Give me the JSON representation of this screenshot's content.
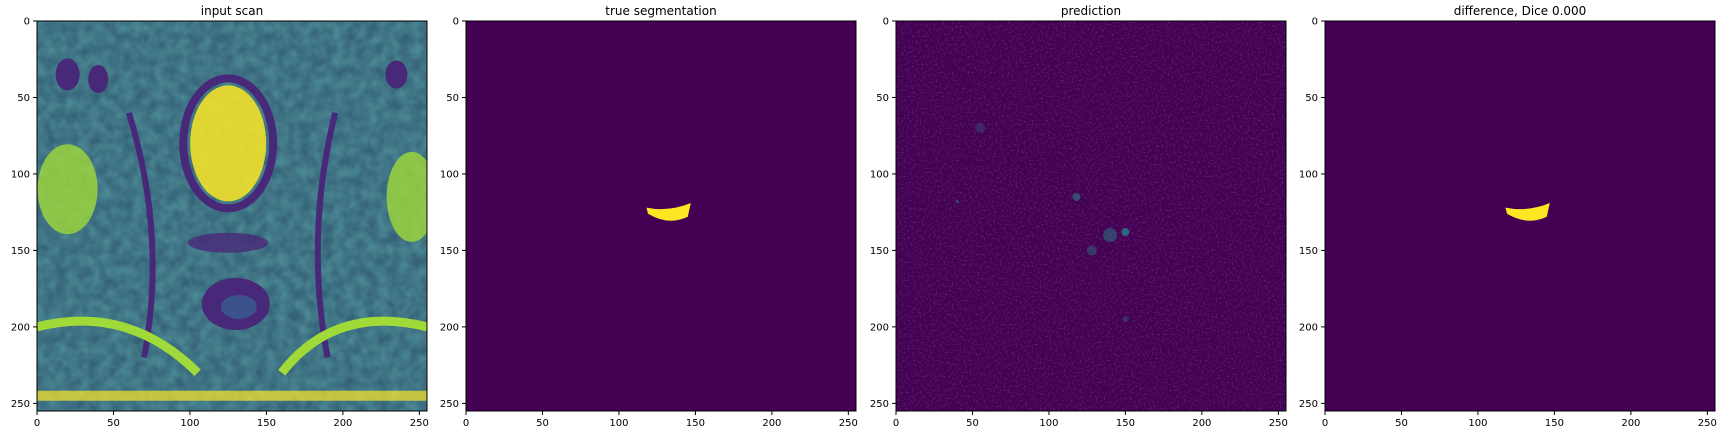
{
  "chart_data": [
    {
      "type": "heatmap",
      "title": "input scan",
      "content": "mri-scan",
      "xlim": [
        0,
        255
      ],
      "ylim": [
        255,
        0
      ],
      "xticks": [
        0,
        50,
        100,
        150,
        200,
        250
      ],
      "yticks": [
        0,
        50,
        100,
        150,
        200,
        250
      ],
      "colormap": "viridis",
      "grid": false
    },
    {
      "type": "heatmap",
      "title": "true segmentation",
      "content": "mask",
      "xlim": [
        0,
        255
      ],
      "ylim": [
        255,
        0
      ],
      "xticks": [
        0,
        50,
        100,
        150,
        200,
        250
      ],
      "yticks": [
        0,
        50,
        100,
        150,
        200,
        250
      ],
      "colormap": "viridis",
      "grid": false,
      "regions": [
        {
          "label": "segmented region",
          "value": 1,
          "x_range": [
            118,
            147
          ],
          "y_range": [
            119,
            131
          ]
        }
      ]
    },
    {
      "type": "heatmap",
      "title": "prediction",
      "content": "prediction",
      "xlim": [
        0,
        255
      ],
      "ylim": [
        255,
        0
      ],
      "xticks": [
        0,
        50,
        100,
        150,
        200,
        250
      ],
      "yticks": [
        0,
        50,
        100,
        150,
        200,
        250
      ],
      "colormap": "viridis",
      "grid": false
    },
    {
      "type": "heatmap",
      "title": "difference, Dice 0.000",
      "content": "mask",
      "xlim": [
        0,
        255
      ],
      "ylim": [
        255,
        0
      ],
      "xticks": [
        0,
        50,
        100,
        150,
        200,
        250
      ],
      "yticks": [
        0,
        50,
        100,
        150,
        200,
        250
      ],
      "colormap": "viridis",
      "grid": false,
      "regions": [
        {
          "label": "difference region",
          "value": 1,
          "x_range": [
            118,
            147
          ],
          "y_range": [
            119,
            131
          ]
        }
      ]
    }
  ],
  "colors": {
    "background": "#440154",
    "low": "#482878",
    "mid": "#21918c",
    "high": "#fde725"
  }
}
